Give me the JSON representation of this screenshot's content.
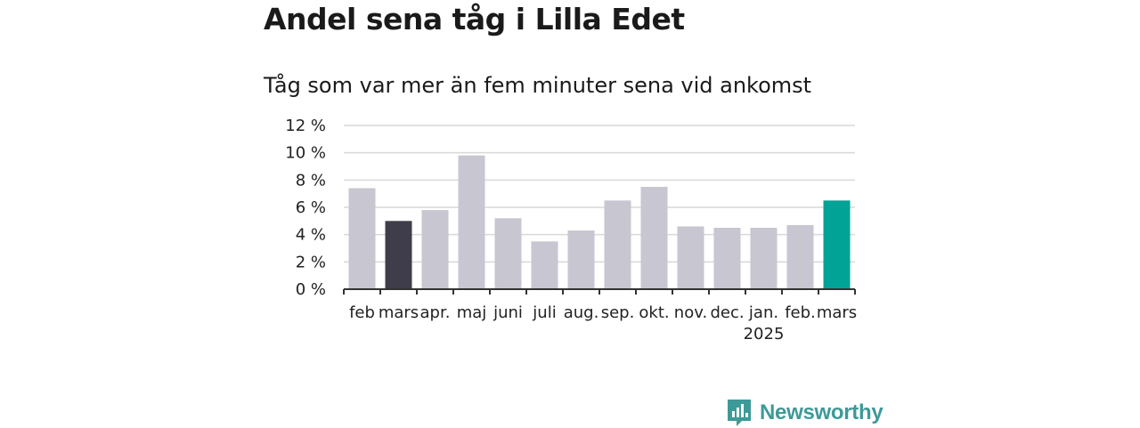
{
  "header": {
    "title": "Andel sena tåg i Lilla Edet",
    "subtitle": "Tåg som var mer än fem minuter sena vid ankomst"
  },
  "brand": {
    "name": "Newsworthy",
    "icon": "newsworthy-logo-icon",
    "color": "#3d9a98"
  },
  "chart_data": {
    "type": "bar",
    "categories": [
      "feb",
      "mars",
      "apr.",
      "maj",
      "juni",
      "juli",
      "aug.",
      "sep.",
      "okt.",
      "nov.",
      "dec.",
      "jan.",
      "feb.",
      "mars"
    ],
    "values": [
      7.4,
      5.0,
      5.8,
      9.8,
      5.2,
      3.5,
      4.3,
      6.5,
      7.5,
      4.6,
      4.5,
      4.5,
      4.7,
      6.5
    ],
    "year_labels": [
      {
        "category_index": 11,
        "label": "2025"
      }
    ],
    "highlight": [
      1,
      13
    ],
    "bar_colors": [
      "#c8c6d0",
      "#3f3d4a",
      "#c8c6d0",
      "#c8c6d0",
      "#c8c6d0",
      "#c8c6d0",
      "#c8c6d0",
      "#c8c6d0",
      "#c8c6d0",
      "#c8c6d0",
      "#c8c6d0",
      "#c8c6d0",
      "#c8c6d0",
      "#00a396"
    ],
    "yticks": [
      0,
      2,
      4,
      6,
      8,
      10,
      12
    ],
    "ytick_labels": [
      "0 %",
      "2 %",
      "4 %",
      "6 %",
      "8 %",
      "10 %",
      "12 %"
    ],
    "ylim": [
      0,
      12
    ],
    "grid": true,
    "title": "Andel sena tåg i Lilla Edet",
    "subtitle": "Tåg som var mer än fem minuter sena vid ankomst",
    "xlabel": "",
    "ylabel": ""
  }
}
